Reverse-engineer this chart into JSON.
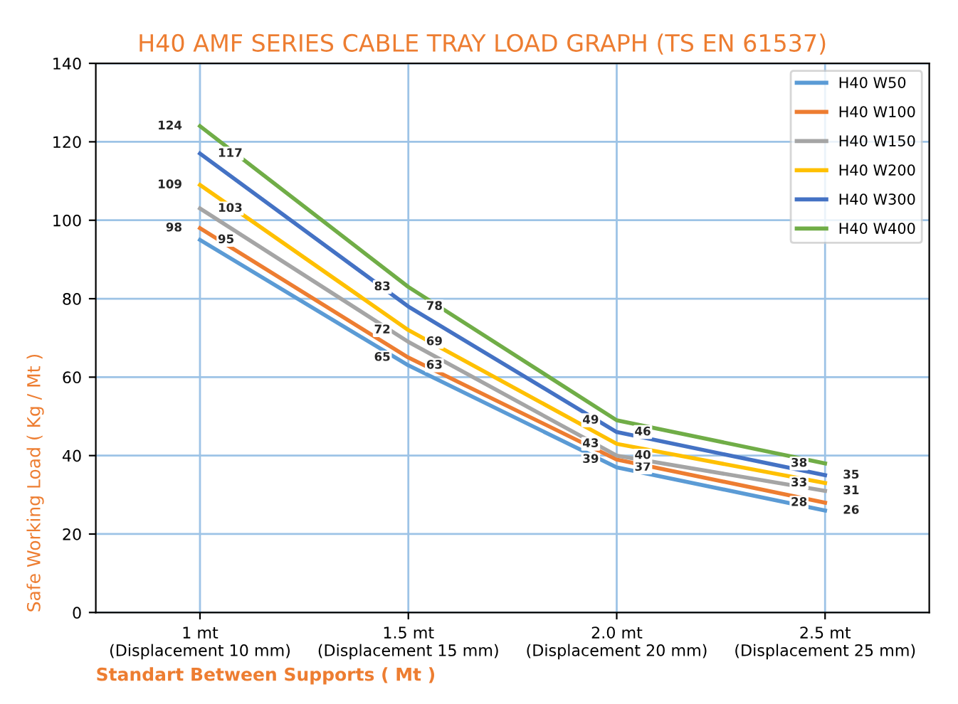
{
  "chart_data": {
    "type": "line",
    "title": "H40 AMF SERIES CABLE TRAY LOAD GRAPH (TS EN 61537)",
    "xlabel": "Standart Between Supports ( Mt )",
    "ylabel": "Safe Working Load ( Kg / Mt )",
    "categories": [
      "1 mt\n(Displacement 10 mm)",
      "1.5 mt\n(Displacement 15 mm)",
      "2.0 mt\n(Displacement 20 mm)",
      "2.5 mt\n(Displacement 25 mm)"
    ],
    "series": [
      {
        "name": "H40 W50",
        "color": "#5b9bd5",
        "values": [
          95,
          63,
          37,
          26
        ]
      },
      {
        "name": "H40 W100",
        "color": "#ed7d31",
        "values": [
          98,
          65,
          39,
          28
        ]
      },
      {
        "name": "H40 W150",
        "color": "#a5a5a5",
        "values": [
          103,
          69,
          40,
          31
        ]
      },
      {
        "name": "H40 W200",
        "color": "#ffc000",
        "values": [
          109,
          72,
          43,
          33
        ]
      },
      {
        "name": "H40 W300",
        "color": "#4472c4",
        "values": [
          117,
          78,
          46,
          35
        ]
      },
      {
        "name": "H40 W400",
        "color": "#70ad47",
        "values": [
          124,
          83,
          49,
          38
        ]
      }
    ],
    "ylim": [
      0,
      140
    ],
    "yticks": [
      0,
      20,
      40,
      60,
      80,
      100,
      120,
      140
    ],
    "grid": true,
    "legend": "top right",
    "data_labels": true,
    "marker": "none",
    "line_style": "solid"
  }
}
